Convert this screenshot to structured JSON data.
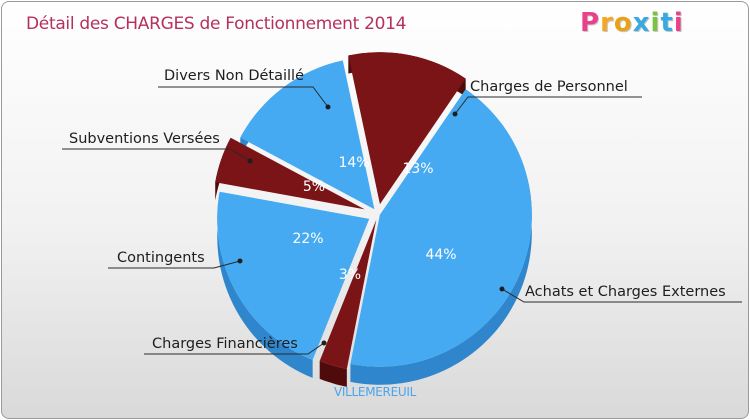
{
  "title": "Détail des CHARGES de Fonctionnement 2014",
  "logo": {
    "text": "Proxiti",
    "colors": [
      "#e8428a",
      "#f5a623",
      "#e8a21a",
      "#39a9e0",
      "#7cc242",
      "#39a9e0",
      "#e8428a"
    ]
  },
  "footer": "VILLEMEREUIL",
  "colors": {
    "blue": "#45aaf2",
    "blue_side": "#2f86cc",
    "red": "#7a1416",
    "red_side": "#4f0a0b"
  },
  "chart_data": {
    "type": "pie",
    "title": "Détail des CHARGES de Fonctionnement 2014",
    "subtitle": "VILLEMEREUIL",
    "slices": [
      {
        "label": "Charges de Personnel",
        "value": 13,
        "pct_label": "13%",
        "color": "red"
      },
      {
        "label": "Achats et Charges Externes",
        "value": 44,
        "pct_label": "44%",
        "color": "blue"
      },
      {
        "label": "Charges Financières",
        "value": 3,
        "pct_label": "3%",
        "color": "red"
      },
      {
        "label": "Contingents",
        "value": 22,
        "pct_label": "22%",
        "color": "blue"
      },
      {
        "label": "Subventions Versées",
        "value": 5,
        "pct_label": "5%",
        "color": "red"
      },
      {
        "label": "Divers Non Détaillé",
        "value": 14,
        "pct_label": "14%",
        "color": "blue"
      }
    ]
  }
}
